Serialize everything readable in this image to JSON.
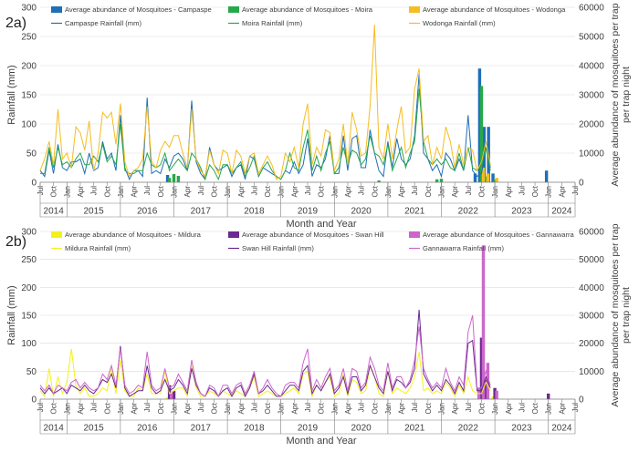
{
  "colors": {
    "campaspe": "#1f6fb5",
    "moira": "#27a84a",
    "wodonga": "#f5bd1f",
    "mildura": "#f2f21a",
    "swanhill": "#6a2a8f",
    "gannawarra": "#cc66cc",
    "grid": "#d9d9d9",
    "axis": "#404040"
  },
  "chart_data": [
    {
      "type": "bar+line",
      "panel_label": "2a)",
      "xlabel": "Month and Year",
      "ylabel_left": "Rainfall (mm)",
      "ylabel_right": "Average abundance of mosquitoes per trap per trap night",
      "ylim_left": [
        0,
        300
      ],
      "ylim_right": [
        0,
        60000
      ],
      "yticks_left": [
        "0",
        "50",
        "100",
        "150",
        "200",
        "250",
        "300"
      ],
      "yticks_right": [
        "0",
        "10000",
        "20000",
        "30000",
        "40000",
        "50000",
        "60000"
      ],
      "month_ticks": [
        "Jul",
        "Oct",
        "Jan",
        "Apr",
        "Jul",
        "Oct",
        "Jan",
        "Apr",
        "Jul",
        "Oct",
        "Jan",
        "Apr",
        "Jul",
        "Oct",
        "Jan",
        "Apr",
        "Jul",
        "Oct",
        "Jan",
        "Apr",
        "Jul",
        "Oct",
        "Jan",
        "Apr",
        "Jul",
        "Oct",
        "Jan",
        "Apr",
        "Jul",
        "Oct",
        "Jan",
        "Apr",
        "Jul",
        "Oct",
        "Jan",
        "Apr",
        "Jul",
        "Oct",
        "Jan",
        "Apr",
        "Jul"
      ],
      "years": [
        "2014",
        "2015",
        "2016",
        "2017",
        "2018",
        "2019",
        "2020",
        "2021",
        "2022",
        "2023",
        "2024"
      ],
      "x_start": "2014-07",
      "x_end": "2024-07",
      "legend": [
        {
          "label": "Average abundance of Mosquitoes - Campaspe",
          "kind": "bar",
          "color_key": "campaspe"
        },
        {
          "label": "Average abundance of Mosquitoes - Moira",
          "kind": "bar",
          "color_key": "moira"
        },
        {
          "label": "Average abundance of Mosquitoes - Wodonga",
          "kind": "bar",
          "color_key": "wodonga"
        },
        {
          "label": "Campaspe Rainfall (mm)",
          "kind": "line",
          "color_key": "campaspe"
        },
        {
          "label": "Moira Rainfall (mm)",
          "kind": "line",
          "color_key": "moira"
        },
        {
          "label": "Wodonga Rainfall (mm)",
          "kind": "line",
          "color_key": "wodonga"
        }
      ],
      "bars": [
        {
          "name": "Average abundance of Mosquitoes - Campaspe",
          "color_key": "campaspe",
          "points": [
            [
              "2016-12",
              2500
            ],
            [
              "2022-09",
              3000
            ],
            [
              "2022-10",
              39000
            ],
            [
              "2022-11",
              19000
            ],
            [
              "2022-12",
              19000
            ],
            [
              "2023-01",
              3000
            ],
            [
              "2024-01",
              4000
            ]
          ]
        },
        {
          "name": "Average abundance of Mosquitoes - Moira",
          "color_key": "moira",
          "points": [
            [
              "2016-12",
              1500
            ],
            [
              "2017-01",
              2800
            ],
            [
              "2017-02",
              2200
            ],
            [
              "2020-11",
              600
            ],
            [
              "2021-12",
              1000
            ],
            [
              "2022-01",
              1200
            ],
            [
              "2022-10",
              33000
            ],
            [
              "2022-11",
              2000
            ],
            [
              "2023-01",
              1000
            ]
          ]
        },
        {
          "name": "Average abundance of Mosquitoes - Wodonga",
          "color_key": "wodonga",
          "points": [
            [
              "2022-10",
              5000
            ],
            [
              "2022-11",
              3000
            ],
            [
              "2023-01",
              1500
            ]
          ]
        }
      ],
      "lines": [
        {
          "name": "Campaspe Rainfall (mm)",
          "color_key": "campaspe",
          "values": [
            20,
            10,
            55,
            15,
            65,
            25,
            20,
            35,
            35,
            40,
            15,
            50,
            20,
            25,
            70,
            40,
            50,
            20,
            115,
            25,
            5,
            20,
            20,
            10,
            145,
            15,
            20,
            15,
            40,
            25,
            45,
            50,
            40,
            20,
            140,
            35,
            15,
            5,
            60,
            30,
            20,
            25,
            30,
            10,
            25,
            30,
            5,
            45,
            40,
            10,
            25,
            20,
            15,
            10,
            5,
            20,
            15,
            35,
            15,
            30,
            75,
            10,
            30,
            25,
            40,
            80,
            15,
            15,
            80,
            20,
            75,
            80,
            25,
            25,
            90,
            50,
            20,
            10,
            70,
            25,
            75,
            40,
            30,
            40,
            80,
            185,
            50,
            40,
            20,
            30,
            10,
            50,
            40,
            20,
            40,
            20,
            115,
            20,
            10,
            15,
            60,
            25
          ]
        },
        {
          "name": "Moira Rainfall (mm)",
          "color_key": "moira",
          "values": [
            15,
            15,
            60,
            25,
            60,
            30,
            35,
            25,
            40,
            50,
            30,
            30,
            45,
            35,
            65,
            35,
            45,
            30,
            100,
            20,
            15,
            15,
            20,
            20,
            50,
            30,
            25,
            30,
            50,
            20,
            30,
            40,
            30,
            20,
            50,
            40,
            25,
            5,
            30,
            20,
            5,
            30,
            30,
            15,
            25,
            35,
            10,
            25,
            45,
            10,
            25,
            35,
            20,
            10,
            5,
            20,
            50,
            25,
            20,
            60,
            90,
            20,
            45,
            20,
            50,
            70,
            15,
            25,
            60,
            30,
            55,
            50,
            30,
            40,
            80,
            50,
            45,
            30,
            65,
            20,
            40,
            60,
            25,
            50,
            70,
            160,
            70,
            40,
            30,
            40,
            30,
            40,
            25,
            20,
            50,
            20,
            60,
            25,
            20,
            30,
            60,
            20
          ]
        },
        {
          "name": "Wodonga Rainfall (mm)",
          "color_key": "wodonga",
          "values": [
            20,
            40,
            70,
            30,
            125,
            40,
            50,
            25,
            95,
            85,
            55,
            105,
            20,
            50,
            120,
            110,
            120,
            65,
            135,
            35,
            10,
            20,
            25,
            40,
            130,
            35,
            25,
            55,
            70,
            60,
            80,
            80,
            50,
            25,
            125,
            40,
            20,
            10,
            55,
            30,
            15,
            55,
            50,
            15,
            55,
            45,
            15,
            45,
            50,
            15,
            30,
            45,
            30,
            5,
            10,
            50,
            35,
            60,
            25,
            100,
            135,
            30,
            60,
            45,
            90,
            85,
            20,
            40,
            100,
            30,
            120,
            90,
            45,
            50,
            130,
            270,
            60,
            40,
            100,
            40,
            90,
            130,
            50,
            60,
            160,
            195,
            70,
            80,
            30,
            60,
            40,
            95,
            70,
            25,
            65,
            30,
            60,
            55,
            20,
            35,
            70,
            30
          ]
        }
      ]
    },
    {
      "type": "bar+line",
      "panel_label": "2b)",
      "xlabel": "Month and Year",
      "ylabel_left": "Rainfall (mm)",
      "ylabel_right": "Average abundance of mosquitoes per trap per trap night",
      "ylim_left": [
        0,
        300
      ],
      "ylim_right": [
        0,
        60000
      ],
      "yticks_left": [
        "0",
        "50",
        "100",
        "150",
        "200",
        "250",
        "300"
      ],
      "yticks_right": [
        "0",
        "10000",
        "20000",
        "30000",
        "40000",
        "50000",
        "60000"
      ],
      "month_ticks": [
        "Jul",
        "Oct",
        "Jan",
        "Apr",
        "Jul",
        "Oct",
        "Jan",
        "Apr",
        "Jul",
        "Oct",
        "Jan",
        "Apr",
        "Jul",
        "Oct",
        "Jan",
        "Apr",
        "Jul",
        "Oct",
        "Jan",
        "Apr",
        "Jul",
        "Oct",
        "Jan",
        "Apr",
        "Jul",
        "Oct",
        "Jan",
        "Apr",
        "Jul",
        "Oct",
        "Jan",
        "Apr",
        "Jul",
        "Oct",
        "Jan",
        "Apr",
        "Jul",
        "Oct",
        "Jan",
        "Apr",
        "Jul"
      ],
      "years": [
        "2014",
        "2015",
        "2016",
        "2017",
        "2018",
        "2019",
        "2020",
        "2021",
        "2022",
        "2023",
        "2024"
      ],
      "x_start": "2014-07",
      "x_end": "2024-07",
      "legend": [
        {
          "label": "Average abundance of Mosquitoes - Mildura",
          "kind": "bar",
          "color_key": "mildura"
        },
        {
          "label": "Average abundance of Mosquitoes - Swan Hill",
          "kind": "bar",
          "color_key": "swanhill"
        },
        {
          "label": "Average abundance of Mosquitoes - Gannawarra",
          "kind": "bar",
          "color_key": "gannawarra"
        },
        {
          "label": "Mildura Rainfall (mm)",
          "kind": "line",
          "color_key": "mildura"
        },
        {
          "label": "Swan Hill Rainfall (mm)",
          "kind": "line",
          "color_key": "swanhill"
        },
        {
          "label": "Gannawarra Rainfall (mm)",
          "kind": "line",
          "color_key": "gannawarra"
        }
      ],
      "bars": [
        {
          "name": "Average abundance of Mosquitoes - Mildura",
          "color_key": "mildura",
          "points": [
            [
              "2016-12",
              600
            ],
            [
              "2022-10",
              2000
            ],
            [
              "2023-01",
              1000
            ]
          ]
        },
        {
          "name": "Average abundance of Mosquitoes - Swan Hill",
          "color_key": "swanhill",
          "points": [
            [
              "2016-12",
              5000
            ],
            [
              "2017-01",
              3000
            ],
            [
              "2022-10",
              22000
            ],
            [
              "2022-11",
              7000
            ],
            [
              "2023-01",
              4000
            ],
            [
              "2024-01",
              2000
            ]
          ]
        },
        {
          "name": "Average abundance of Mosquitoes - Gannawarra",
          "color_key": "gannawarra",
          "points": [
            [
              "2016-12",
              2000
            ],
            [
              "2022-09",
              4000
            ],
            [
              "2022-10",
              55000
            ],
            [
              "2022-11",
              13000
            ],
            [
              "2023-01",
              3000
            ]
          ]
        }
      ],
      "lines": [
        {
          "name": "Mildura Rainfall (mm)",
          "color_key": "mildura",
          "values": [
            15,
            5,
            55,
            5,
            40,
            10,
            30,
            90,
            25,
            10,
            20,
            5,
            5,
            10,
            20,
            15,
            55,
            10,
            70,
            15,
            5,
            5,
            20,
            15,
            45,
            10,
            10,
            10,
            50,
            10,
            15,
            20,
            20,
            5,
            60,
            20,
            5,
            5,
            15,
            10,
            5,
            15,
            10,
            5,
            15,
            10,
            5,
            20,
            40,
            5,
            10,
            15,
            10,
            5,
            5,
            10,
            15,
            20,
            10,
            45,
            50,
            5,
            25,
            15,
            30,
            40,
            5,
            10,
            45,
            5,
            35,
            30,
            10,
            15,
            60,
            40,
            10,
            5,
            50,
            10,
            20,
            15,
            10,
            20,
            40,
            85,
            15,
            20,
            10,
            15,
            10,
            30,
            20,
            5,
            25,
            10,
            40,
            15,
            10,
            10,
            30,
            15
          ]
        },
        {
          "name": "Swan Hill Rainfall (mm)",
          "color_key": "swanhill",
          "values": [
            20,
            10,
            20,
            10,
            15,
            20,
            10,
            25,
            20,
            15,
            25,
            15,
            10,
            20,
            35,
            30,
            45,
            20,
            95,
            20,
            5,
            10,
            15,
            15,
            60,
            20,
            10,
            15,
            35,
            15,
            20,
            35,
            25,
            10,
            55,
            25,
            10,
            5,
            20,
            15,
            5,
            15,
            20,
            5,
            20,
            25,
            5,
            20,
            45,
            10,
            15,
            25,
            15,
            5,
            5,
            15,
            25,
            25,
            15,
            50,
            60,
            10,
            25,
            15,
            30,
            45,
            10,
            20,
            40,
            10,
            40,
            40,
            15,
            25,
            60,
            40,
            20,
            10,
            50,
            15,
            35,
            30,
            20,
            30,
            55,
            160,
            45,
            30,
            15,
            25,
            15,
            35,
            25,
            10,
            30,
            15,
            100,
            105,
            15,
            15,
            40,
            20
          ]
        },
        {
          "name": "Gannawarra Rainfall (mm)",
          "color_key": "gannawarra",
          "values": [
            25,
            15,
            25,
            10,
            25,
            20,
            15,
            30,
            35,
            20,
            30,
            20,
            15,
            20,
            45,
            35,
            60,
            25,
            90,
            25,
            10,
            15,
            25,
            20,
            85,
            25,
            15,
            20,
            55,
            20,
            25,
            45,
            30,
            15,
            70,
            30,
            10,
            5,
            25,
            20,
            5,
            25,
            25,
            10,
            25,
            30,
            10,
            25,
            50,
            10,
            20,
            35,
            20,
            10,
            5,
            25,
            30,
            30,
            20,
            65,
            90,
            15,
            35,
            20,
            40,
            55,
            15,
            25,
            55,
            15,
            55,
            50,
            20,
            30,
            75,
            55,
            25,
            15,
            65,
            20,
            40,
            40,
            20,
            35,
            70,
            130,
            55,
            35,
            20,
            30,
            20,
            55,
            30,
            15,
            40,
            25,
            120,
            150,
            20,
            20,
            50,
            25
          ]
        }
      ]
    }
  ]
}
